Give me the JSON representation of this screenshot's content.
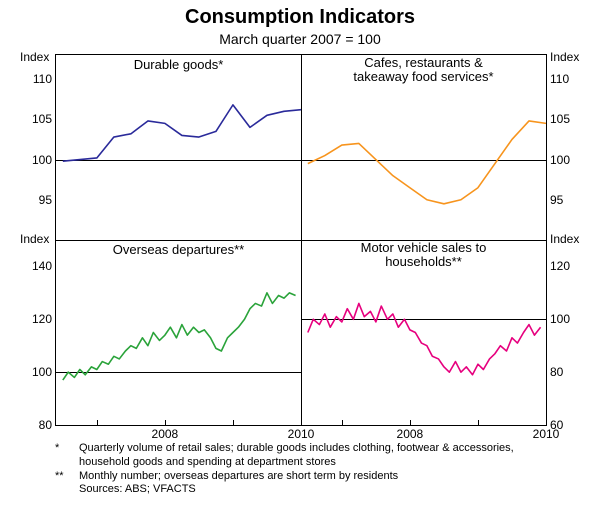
{
  "title": "Consumption Indicators",
  "subtitle": "March quarter 2007 = 100",
  "axis_label_left": "Index",
  "axis_label_right": "Index",
  "panels": {
    "tl": {
      "title": "Durable goods*",
      "ymin": 90,
      "ymax": 113,
      "ticks": [
        95,
        100,
        105,
        110
      ],
      "color": "#2a2a9a",
      "line_width": 1.6,
      "x_start": 2006.4,
      "x_end": 2010.0,
      "x_ticks": [
        2008,
        2010
      ],
      "data": [
        [
          2006.5,
          99.8
        ],
        [
          2006.75,
          100.0
        ],
        [
          2007.0,
          100.2
        ],
        [
          2007.25,
          102.8
        ],
        [
          2007.5,
          103.2
        ],
        [
          2007.75,
          104.8
        ],
        [
          2008.0,
          104.5
        ],
        [
          2008.25,
          103.0
        ],
        [
          2008.5,
          102.8
        ],
        [
          2008.75,
          103.5
        ],
        [
          2009.0,
          106.8
        ],
        [
          2009.25,
          104.0
        ],
        [
          2009.5,
          105.5
        ],
        [
          2009.75,
          106.0
        ],
        [
          2010.0,
          106.2
        ]
      ]
    },
    "tr": {
      "title": "Cafes, restaurants & takeaway food services*",
      "ymin": 90,
      "ymax": 113,
      "ticks": [
        95,
        100,
        105,
        110
      ],
      "color": "#f7941d",
      "line_width": 1.6,
      "x_start": 2006.4,
      "x_end": 2010.0,
      "x_ticks": [
        2008,
        2010
      ],
      "data": [
        [
          2006.5,
          99.5
        ],
        [
          2006.75,
          100.5
        ],
        [
          2007.0,
          101.8
        ],
        [
          2007.25,
          102.0
        ],
        [
          2007.5,
          100.0
        ],
        [
          2007.75,
          98.0
        ],
        [
          2008.0,
          96.5
        ],
        [
          2008.25,
          95.0
        ],
        [
          2008.5,
          94.5
        ],
        [
          2008.75,
          95.0
        ],
        [
          2009.0,
          96.5
        ],
        [
          2009.25,
          99.5
        ],
        [
          2009.5,
          102.5
        ],
        [
          2009.75,
          104.8
        ],
        [
          2010.0,
          104.5
        ]
      ]
    },
    "bl": {
      "title": "Overseas departures**",
      "ymin": 80,
      "ymax": 150,
      "ticks": [
        80,
        100,
        120,
        140
      ],
      "color": "#2aa33a",
      "line_width": 1.6,
      "x_start": 2006.4,
      "x_end": 2010.0,
      "x_ticks": [
        2008,
        2010
      ],
      "data": [
        [
          2006.5,
          97
        ],
        [
          2006.58,
          100
        ],
        [
          2006.67,
          98
        ],
        [
          2006.75,
          101
        ],
        [
          2006.83,
          99
        ],
        [
          2006.92,
          102
        ],
        [
          2007.0,
          101
        ],
        [
          2007.08,
          104
        ],
        [
          2007.17,
          103
        ],
        [
          2007.25,
          106
        ],
        [
          2007.33,
          105
        ],
        [
          2007.42,
          108
        ],
        [
          2007.5,
          110
        ],
        [
          2007.58,
          109
        ],
        [
          2007.67,
          113
        ],
        [
          2007.75,
          110
        ],
        [
          2007.83,
          115
        ],
        [
          2007.92,
          112
        ],
        [
          2008.0,
          114
        ],
        [
          2008.08,
          117
        ],
        [
          2008.17,
          113
        ],
        [
          2008.25,
          118
        ],
        [
          2008.33,
          114
        ],
        [
          2008.42,
          117
        ],
        [
          2008.5,
          115
        ],
        [
          2008.58,
          116
        ],
        [
          2008.67,
          113
        ],
        [
          2008.75,
          109
        ],
        [
          2008.83,
          108
        ],
        [
          2008.92,
          113
        ],
        [
          2009.0,
          115
        ],
        [
          2009.08,
          117
        ],
        [
          2009.17,
          120
        ],
        [
          2009.25,
          124
        ],
        [
          2009.33,
          126
        ],
        [
          2009.42,
          125
        ],
        [
          2009.5,
          130
        ],
        [
          2009.58,
          126
        ],
        [
          2009.67,
          129
        ],
        [
          2009.75,
          128
        ],
        [
          2009.83,
          130
        ],
        [
          2009.92,
          129
        ]
      ]
    },
    "br": {
      "title": "Motor vehicle sales to households**",
      "ymin": 60,
      "ymax": 130,
      "ticks": [
        60,
        80,
        100,
        120
      ],
      "color": "#e6007e",
      "line_width": 1.6,
      "x_start": 2006.4,
      "x_end": 2010.0,
      "x_ticks": [
        2008,
        2010
      ],
      "data": [
        [
          2006.5,
          95
        ],
        [
          2006.58,
          100
        ],
        [
          2006.67,
          98
        ],
        [
          2006.75,
          102
        ],
        [
          2006.83,
          97
        ],
        [
          2006.92,
          101
        ],
        [
          2007.0,
          99
        ],
        [
          2007.08,
          104
        ],
        [
          2007.17,
          100
        ],
        [
          2007.25,
          106
        ],
        [
          2007.33,
          101
        ],
        [
          2007.42,
          103
        ],
        [
          2007.5,
          99
        ],
        [
          2007.58,
          105
        ],
        [
          2007.67,
          100
        ],
        [
          2007.75,
          102
        ],
        [
          2007.83,
          97
        ],
        [
          2007.92,
          100
        ],
        [
          2008.0,
          96
        ],
        [
          2008.08,
          95
        ],
        [
          2008.17,
          91
        ],
        [
          2008.25,
          90
        ],
        [
          2008.33,
          86
        ],
        [
          2008.42,
          85
        ],
        [
          2008.5,
          82
        ],
        [
          2008.58,
          80
        ],
        [
          2008.67,
          84
        ],
        [
          2008.75,
          80
        ],
        [
          2008.83,
          82
        ],
        [
          2008.92,
          79
        ],
        [
          2009.0,
          83
        ],
        [
          2009.08,
          81
        ],
        [
          2009.17,
          85
        ],
        [
          2009.25,
          87
        ],
        [
          2009.33,
          90
        ],
        [
          2009.42,
          88
        ],
        [
          2009.5,
          93
        ],
        [
          2009.58,
          91
        ],
        [
          2009.67,
          95
        ],
        [
          2009.75,
          98
        ],
        [
          2009.83,
          94
        ],
        [
          2009.92,
          97
        ]
      ]
    }
  },
  "footnotes": [
    {
      "sym": "*",
      "text": "Quarterly volume of retail sales; durable goods includes clothing, footwear & accessories, household goods and spending at department stores"
    },
    {
      "sym": "**",
      "text": "Monthly number; overseas departures are short term by residents"
    }
  ],
  "sources": "Sources: ABS; VFACTS",
  "background_color": "#ffffff"
}
